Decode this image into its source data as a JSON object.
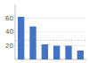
{
  "chart_data": {
    "type": "bar",
    "categories": [
      null,
      null,
      null,
      null,
      null,
      null
    ],
    "values": [
      62,
      48,
      22,
      20,
      20,
      13
    ],
    "color": "#4472c4",
    "ylim": [
      0,
      80
    ],
    "yticks": [
      20,
      40,
      60
    ],
    "grid": true,
    "tick_labels": "y",
    "reference_line": 28
  }
}
